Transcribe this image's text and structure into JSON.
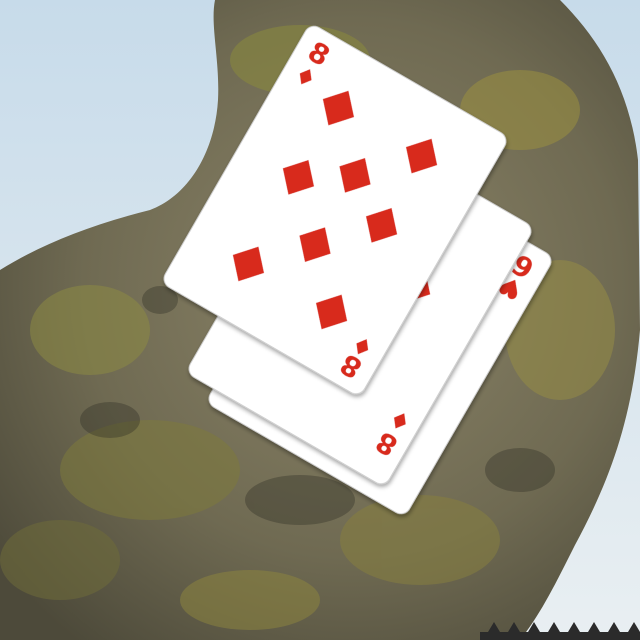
{
  "scene": {
    "sky_color": "#d9e6ef",
    "rock_color": "#7a7258",
    "lichen_color": "#8f8a3e",
    "fence_color": "#2b2b2b"
  },
  "cards": [
    {
      "rank": "8",
      "suit": "diamonds",
      "suit_symbol": "♦",
      "color": "#d82a1e"
    },
    {
      "rank": "8",
      "suit": "diamonds",
      "suit_symbol": "♦",
      "color": "#d82a1e"
    },
    {
      "rank": "6",
      "suit": "hearts",
      "suit_symbol": "♥",
      "color": "#d82a1e"
    }
  ]
}
